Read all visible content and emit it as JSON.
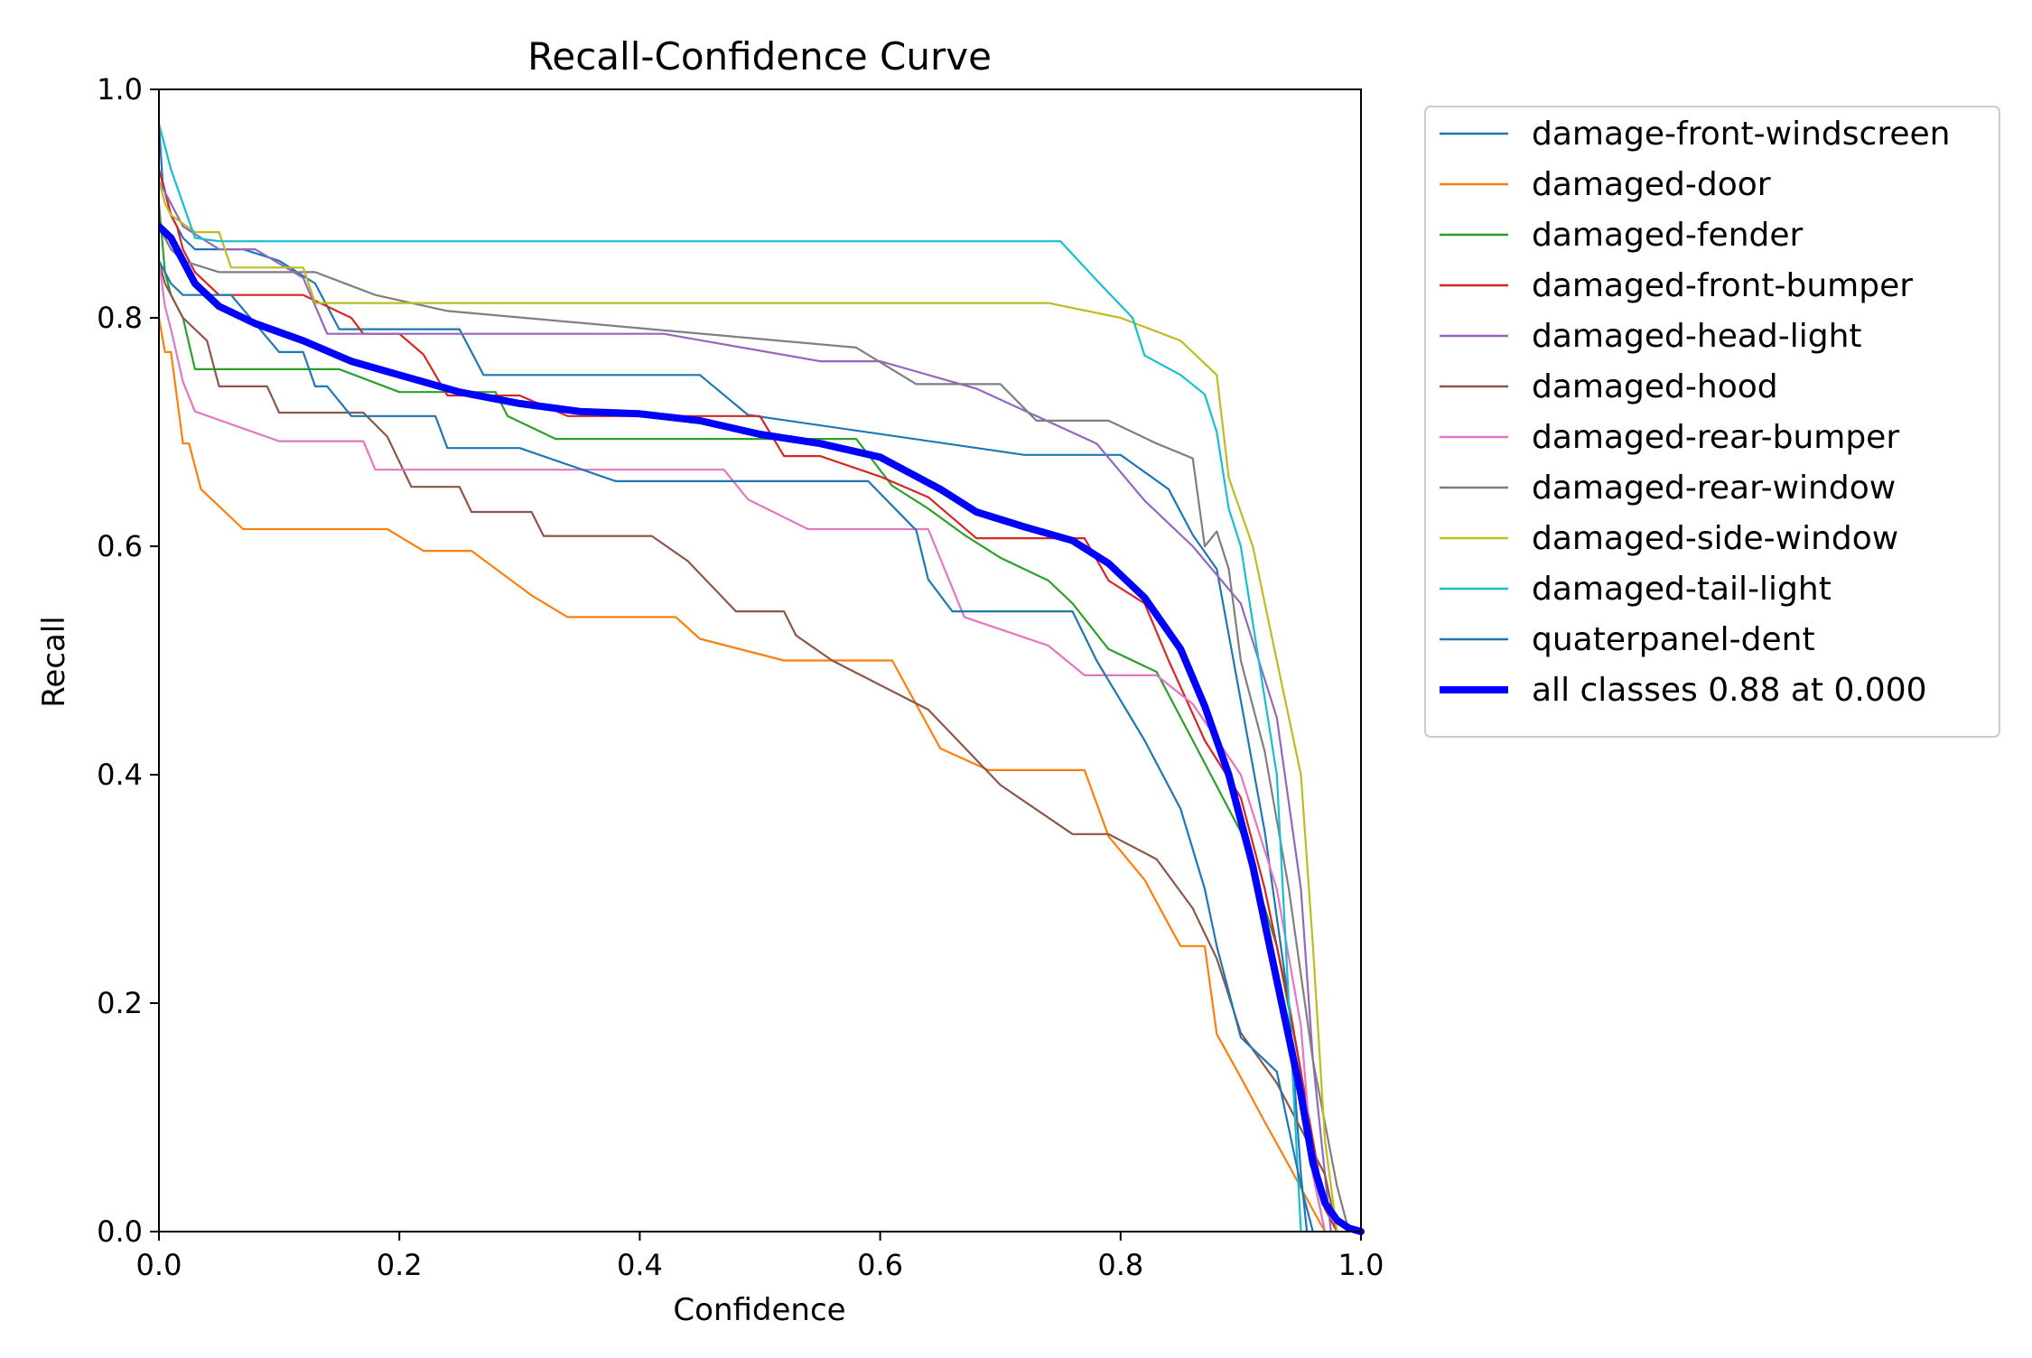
{
  "chart_data": {
    "type": "line",
    "title": "Recall-Confidence Curve",
    "xlabel": "Confidence",
    "ylabel": "Recall",
    "xlim": [
      0,
      1
    ],
    "ylim": [
      0,
      1
    ],
    "xticks": [
      "0.0",
      "0.2",
      "0.4",
      "0.6",
      "0.8",
      "1.0"
    ],
    "yticks": [
      "0.0",
      "0.2",
      "0.4",
      "0.6",
      "0.8",
      "1.0"
    ],
    "grid": false,
    "legend_position": "outside-top-right",
    "series": [
      {
        "name": "damage-front-windscreen",
        "color": "#1f77b4",
        "x": [
          0,
          0.003,
          0.01,
          0.02,
          0.03,
          0.07,
          0.1,
          0.13,
          0.15,
          0.25,
          0.27,
          0.45,
          0.49,
          0.72,
          0.8,
          0.84,
          0.86,
          0.88,
          0.92,
          0.94,
          0.95,
          0.955
        ],
        "y": [
          0.97,
          0.92,
          0.89,
          0.87,
          0.86,
          0.86,
          0.85,
          0.83,
          0.79,
          0.79,
          0.75,
          0.75,
          0.715,
          0.68,
          0.68,
          0.65,
          0.61,
          0.58,
          0.35,
          0.2,
          0.05,
          0
        ]
      },
      {
        "name": "damaged-door",
        "color": "#ff7f0e",
        "x": [
          0,
          0.005,
          0.01,
          0.015,
          0.02,
          0.025,
          0.03,
          0.035,
          0.05,
          0.07,
          0.19,
          0.22,
          0.26,
          0.31,
          0.34,
          0.43,
          0.45,
          0.52,
          0.61,
          0.65,
          0.69,
          0.77,
          0.79,
          0.82,
          0.84,
          0.85,
          0.87,
          0.88,
          0.9,
          0.92,
          0.94,
          0.96,
          0.97
        ],
        "y": [
          0.8,
          0.77,
          0.77,
          0.73,
          0.69,
          0.69,
          0.67,
          0.65,
          0.635,
          0.615,
          0.615,
          0.596,
          0.596,
          0.557,
          0.538,
          0.538,
          0.519,
          0.5,
          0.5,
          0.423,
          0.404,
          0.404,
          0.346,
          0.308,
          0.269,
          0.25,
          0.25,
          0.173,
          0.135,
          0.096,
          0.058,
          0.019,
          0
        ]
      },
      {
        "name": "damaged-fender",
        "color": "#2ca02c",
        "x": [
          0,
          0.005,
          0.01,
          0.02,
          0.03,
          0.15,
          0.2,
          0.28,
          0.29,
          0.33,
          0.58,
          0.61,
          0.64,
          0.67,
          0.7,
          0.74,
          0.76,
          0.79,
          0.83,
          0.86,
          0.9,
          0.93,
          0.95,
          0.96,
          0.97
        ],
        "y": [
          0.9,
          0.84,
          0.82,
          0.8,
          0.755,
          0.755,
          0.735,
          0.735,
          0.714,
          0.694,
          0.694,
          0.653,
          0.633,
          0.61,
          0.59,
          0.57,
          0.55,
          0.51,
          0.49,
          0.43,
          0.35,
          0.25,
          0.14,
          0.05,
          0
        ]
      },
      {
        "name": "damaged-front-bumper",
        "color": "#d62728",
        "x": [
          0,
          0.005,
          0.01,
          0.015,
          0.02,
          0.03,
          0.05,
          0.12,
          0.16,
          0.17,
          0.2,
          0.22,
          0.24,
          0.3,
          0.34,
          0.5,
          0.52,
          0.55,
          0.6,
          0.64,
          0.68,
          0.77,
          0.79,
          0.82,
          0.84,
          0.87,
          0.9,
          0.92,
          0.94,
          0.96,
          0.97,
          0.98
        ],
        "y": [
          0.93,
          0.91,
          0.89,
          0.88,
          0.86,
          0.84,
          0.82,
          0.82,
          0.8,
          0.786,
          0.786,
          0.768,
          0.732,
          0.732,
          0.714,
          0.714,
          0.679,
          0.679,
          0.661,
          0.643,
          0.607,
          0.607,
          0.57,
          0.55,
          0.5,
          0.43,
          0.38,
          0.3,
          0.2,
          0.08,
          0.02,
          0
        ]
      },
      {
        "name": "damaged-head-light",
        "color": "#9467bd",
        "x": [
          0,
          0.01,
          0.02,
          0.05,
          0.08,
          0.12,
          0.14,
          0.42,
          0.55,
          0.6,
          0.68,
          0.73,
          0.78,
          0.82,
          0.86,
          0.9,
          0.93,
          0.95,
          0.96,
          0.97,
          0.975
        ],
        "y": [
          0.92,
          0.9,
          0.88,
          0.86,
          0.86,
          0.835,
          0.786,
          0.786,
          0.762,
          0.762,
          0.738,
          0.714,
          0.69,
          0.64,
          0.6,
          0.55,
          0.45,
          0.3,
          0.15,
          0.05,
          0
        ]
      },
      {
        "name": "damaged-hood",
        "color": "#8c564b",
        "x": [
          0,
          0.005,
          0.02,
          0.04,
          0.05,
          0.09,
          0.1,
          0.17,
          0.19,
          0.21,
          0.25,
          0.26,
          0.31,
          0.32,
          0.41,
          0.44,
          0.46,
          0.48,
          0.52,
          0.53,
          0.56,
          0.64,
          0.66,
          0.7,
          0.76,
          0.79,
          0.83,
          0.86,
          0.88,
          0.9,
          0.93,
          0.97,
          0.98
        ],
        "y": [
          0.85,
          0.83,
          0.8,
          0.78,
          0.74,
          0.74,
          0.717,
          0.717,
          0.696,
          0.652,
          0.652,
          0.63,
          0.63,
          0.609,
          0.609,
          0.587,
          0.565,
          0.543,
          0.543,
          0.522,
          0.5,
          0.457,
          0.435,
          0.391,
          0.348,
          0.348,
          0.326,
          0.283,
          0.239,
          0.174,
          0.13,
          0.05,
          0
        ]
      },
      {
        "name": "damaged-rear-bumper",
        "color": "#e377c2",
        "x": [
          0,
          0.005,
          0.01,
          0.02,
          0.03,
          0.1,
          0.17,
          0.18,
          0.47,
          0.49,
          0.54,
          0.64,
          0.67,
          0.74,
          0.77,
          0.83,
          0.86,
          0.9,
          0.93,
          0.95,
          0.96,
          0.97
        ],
        "y": [
          0.85,
          0.81,
          0.79,
          0.744,
          0.718,
          0.692,
          0.692,
          0.667,
          0.667,
          0.641,
          0.615,
          0.615,
          0.538,
          0.513,
          0.487,
          0.487,
          0.462,
          0.4,
          0.3,
          0.18,
          0.05,
          0
        ]
      },
      {
        "name": "damaged-rear-window",
        "color": "#7f7f7f",
        "x": [
          0,
          0.01,
          0.02,
          0.05,
          0.13,
          0.18,
          0.24,
          0.58,
          0.63,
          0.7,
          0.73,
          0.79,
          0.83,
          0.86,
          0.87,
          0.88,
          0.89,
          0.9,
          0.92,
          0.94,
          0.96,
          0.98,
          0.99
        ],
        "y": [
          0.88,
          0.86,
          0.85,
          0.84,
          0.84,
          0.82,
          0.806,
          0.774,
          0.742,
          0.742,
          0.71,
          0.71,
          0.69,
          0.677,
          0.6,
          0.613,
          0.58,
          0.5,
          0.42,
          0.3,
          0.15,
          0.04,
          0
        ]
      },
      {
        "name": "damaged-side-window",
        "color": "#bcbd22",
        "x": [
          0,
          0.005,
          0.01,
          0.03,
          0.05,
          0.06,
          0.12,
          0.13,
          0.14,
          0.74,
          0.8,
          0.85,
          0.88,
          0.89,
          0.91,
          0.93,
          0.95,
          0.96,
          0.97,
          0.98
        ],
        "y": [
          0.92,
          0.9,
          0.89,
          0.875,
          0.875,
          0.844,
          0.844,
          0.813,
          0.813,
          0.813,
          0.8,
          0.78,
          0.75,
          0.66,
          0.6,
          0.5,
          0.4,
          0.25,
          0.08,
          0
        ]
      },
      {
        "name": "damaged-tail-light",
        "color": "#17becf",
        "x": [
          0,
          0.005,
          0.01,
          0.02,
          0.03,
          0.05,
          0.75,
          0.78,
          0.81,
          0.82,
          0.85,
          0.87,
          0.88,
          0.89,
          0.9,
          0.91,
          0.93,
          0.94,
          0.95
        ],
        "y": [
          0.97,
          0.95,
          0.93,
          0.9,
          0.87,
          0.867,
          0.867,
          0.833,
          0.8,
          0.767,
          0.75,
          0.733,
          0.7,
          0.633,
          0.6,
          0.533,
          0.4,
          0.2,
          0
        ]
      },
      {
        "name": "quaterpanel-dent",
        "color": "#1f77b4",
        "x": [
          0,
          0.01,
          0.02,
          0.06,
          0.1,
          0.12,
          0.13,
          0.14,
          0.16,
          0.23,
          0.24,
          0.3,
          0.38,
          0.59,
          0.63,
          0.64,
          0.66,
          0.76,
          0.78,
          0.82,
          0.85,
          0.87,
          0.88,
          0.9,
          0.93,
          0.95,
          0.96
        ],
        "y": [
          0.85,
          0.83,
          0.82,
          0.82,
          0.77,
          0.77,
          0.74,
          0.74,
          0.714,
          0.714,
          0.686,
          0.686,
          0.657,
          0.657,
          0.614,
          0.571,
          0.543,
          0.543,
          0.5,
          0.43,
          0.37,
          0.3,
          0.25,
          0.17,
          0.14,
          0.04,
          0
        ]
      },
      {
        "name": "all classes 0.88 at 0.000",
        "color": "#0000ff",
        "thick": true,
        "x": [
          0,
          0.01,
          0.02,
          0.03,
          0.05,
          0.08,
          0.12,
          0.16,
          0.2,
          0.25,
          0.3,
          0.35,
          0.4,
          0.45,
          0.5,
          0.55,
          0.6,
          0.65,
          0.68,
          0.72,
          0.76,
          0.79,
          0.82,
          0.85,
          0.87,
          0.89,
          0.91,
          0.93,
          0.95,
          0.96,
          0.97,
          0.98,
          0.99,
          1.0
        ],
        "y": [
          0.88,
          0.87,
          0.85,
          0.83,
          0.81,
          0.795,
          0.78,
          0.762,
          0.75,
          0.735,
          0.725,
          0.718,
          0.716,
          0.71,
          0.698,
          0.69,
          0.678,
          0.65,
          0.63,
          0.617,
          0.605,
          0.585,
          0.555,
          0.51,
          0.46,
          0.4,
          0.32,
          0.22,
          0.12,
          0.06,
          0.025,
          0.01,
          0.003,
          0.0
        ]
      }
    ]
  }
}
